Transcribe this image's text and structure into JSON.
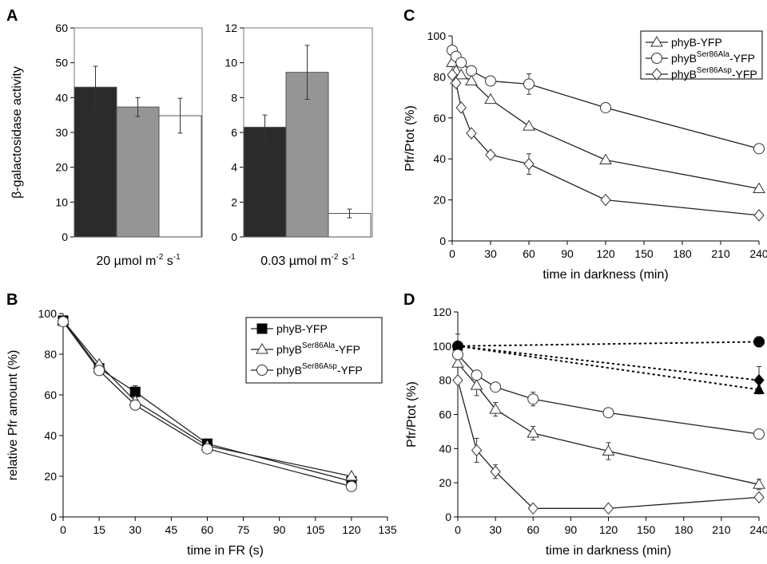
{
  "colors": {
    "dark": "#2b2b2b",
    "gray": "#959595",
    "white": "#ffffff",
    "axis": "#000000",
    "plotbg": "#ffffff"
  },
  "chart_data": [
    {
      "panel": "A",
      "type": "bar",
      "ylabel": "β-galactosidase activity",
      "subpanels": [
        {
          "xlabel": {
            "pre": "20 µmol m",
            "sup1": "-2",
            "mid": " s",
            "sup2": "-1"
          },
          "ylim": [
            0,
            60
          ],
          "yticks": [
            0,
            10,
            20,
            30,
            40,
            50,
            60
          ],
          "values": [
            43,
            37.3,
            34.8
          ],
          "errors": [
            6,
            2.7,
            5
          ]
        },
        {
          "xlabel": {
            "pre": "0.03 µmol m",
            "sup1": "-2",
            "mid": " s",
            "sup2": "-1"
          },
          "ylim": [
            0,
            12
          ],
          "yticks": [
            0,
            2,
            4,
            6,
            8,
            10,
            12
          ],
          "values": [
            6.3,
            9.45,
            1.35
          ],
          "errors": [
            0.7,
            1.55,
            0.25
          ]
        }
      ],
      "grid": false
    },
    {
      "panel": "B",
      "type": "line",
      "xlabel": "time in FR (s)",
      "ylabel": "relative Pfr amount (%)",
      "xlim": [
        0,
        135
      ],
      "ylim": [
        0,
        100
      ],
      "xticks": [
        0,
        15,
        30,
        45,
        60,
        75,
        90,
        105,
        120,
        135
      ],
      "yticks": [
        0,
        20,
        40,
        60,
        80,
        100
      ],
      "legend": "top-right",
      "series": [
        {
          "name": "phyB-YFP",
          "marker": "square-filled",
          "x": [
            0,
            15,
            30,
            60,
            120
          ],
          "y": [
            96.5,
            73,
            61.5,
            36,
            17.5
          ],
          "err": [
            0,
            0,
            3,
            0,
            0
          ]
        },
        {
          "name_parts": {
            "pre": "phyB",
            "sup": "Ser86Ala",
            "post": "-YFP"
          },
          "marker": "triangle-open",
          "x": [
            0,
            15,
            30,
            60,
            120
          ],
          "y": [
            96.5,
            75,
            57,
            35,
            20
          ],
          "err": [
            0,
            0,
            0,
            0,
            0
          ]
        },
        {
          "name_parts": {
            "pre": "phyB",
            "sup": "Ser86Asp",
            "post": "-YFP"
          },
          "marker": "circle-open",
          "x": [
            0,
            15,
            30,
            60,
            120
          ],
          "y": [
            96,
            72,
            55,
            33.5,
            15
          ],
          "err": [
            0,
            0,
            0,
            0,
            0
          ]
        }
      ]
    },
    {
      "panel": "C",
      "type": "line",
      "xlabel": "time in darkness (min)",
      "ylabel": "Pfr/Ptot (%)",
      "xlim": [
        0,
        240
      ],
      "ylim": [
        0,
        100
      ],
      "xticks": [
        0,
        30,
        60,
        90,
        120,
        150,
        180,
        210,
        240
      ],
      "yticks": [
        0,
        20,
        40,
        60,
        80,
        100
      ],
      "legend": "top-right",
      "series": [
        {
          "name": "phyB-YFP",
          "marker": "triangle-open",
          "x": [
            0,
            3,
            7,
            15,
            30,
            60,
            120,
            240
          ],
          "y": [
            87,
            83,
            81,
            78,
            69,
            56,
            39.5,
            25.5
          ],
          "err": [
            5,
            0,
            0,
            0,
            0,
            0,
            0,
            0
          ]
        },
        {
          "name_parts": {
            "pre": "phyB",
            "sup": "Ser86Ala",
            "post": "-YFP"
          },
          "marker": "circle-open",
          "x": [
            0,
            3,
            7,
            15,
            30,
            60,
            120,
            240
          ],
          "y": [
            93,
            90,
            87,
            83,
            78,
            76.5,
            65,
            45
          ],
          "err": [
            0,
            0,
            0,
            0,
            0,
            5,
            0,
            0
          ]
        },
        {
          "name_parts": {
            "pre": "phyB",
            "sup": "Ser86Asp",
            "post": "-YFP"
          },
          "marker": "diamond-open",
          "x": [
            0,
            3,
            7,
            15,
            30,
            60,
            120,
            240
          ],
          "y": [
            81,
            77,
            65,
            52.5,
            42,
            37.5,
            20,
            12.5
          ],
          "err": [
            4,
            0,
            0,
            0,
            0,
            5,
            0,
            0
          ]
        }
      ]
    },
    {
      "panel": "D",
      "type": "line",
      "xlabel": "time in darkness (min)",
      "ylabel": "Pfr/Ptot (%)",
      "xlim": [
        0,
        240
      ],
      "ylim": [
        0,
        120
      ],
      "xticks": [
        0,
        30,
        60,
        90,
        120,
        150,
        180,
        210,
        240
      ],
      "yticks": [
        0,
        20,
        40,
        60,
        80,
        100,
        120
      ],
      "series": [
        {
          "marker": "triangle-open",
          "x": [
            0,
            15,
            30,
            60,
            120,
            240
          ],
          "y": [
            90,
            77,
            63,
            49,
            38.5,
            19
          ],
          "err": [
            0,
            6,
            4,
            4,
            5,
            3
          ]
        },
        {
          "marker": "circle-open",
          "x": [
            0,
            15,
            30,
            60,
            120,
            240
          ],
          "y": [
            95,
            83,
            76,
            69,
            61,
            48.5
          ],
          "err": [
            0,
            0,
            0,
            4,
            0,
            0
          ]
        },
        {
          "marker": "diamond-open",
          "x": [
            0,
            15,
            30,
            60,
            120,
            240
          ],
          "y": [
            80,
            39,
            26.5,
            5,
            5,
            11.5
          ],
          "err": [
            0,
            7,
            4,
            0,
            0,
            0
          ]
        }
      ],
      "dotted_series": [
        {
          "marker": "circle-filled",
          "x": [
            0,
            240
          ],
          "y": [
            100,
            102.5
          ],
          "err": [
            7,
            3
          ]
        },
        {
          "marker": "diamond-filled",
          "x": [
            0,
            240
          ],
          "y": [
            100,
            80
          ],
          "err": [
            0,
            8
          ]
        },
        {
          "marker": "triangle-filled",
          "x": [
            0,
            240
          ],
          "y": [
            100,
            74.5
          ],
          "err": [
            0,
            0
          ]
        }
      ]
    }
  ]
}
